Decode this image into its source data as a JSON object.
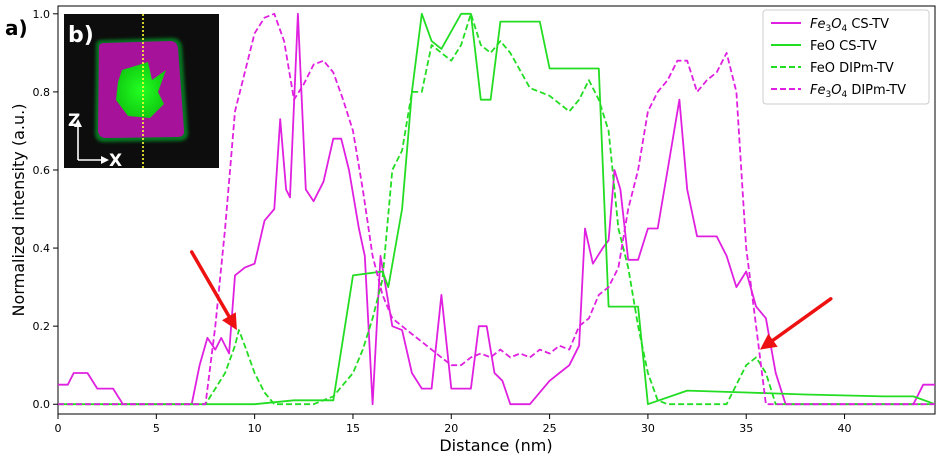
{
  "chart_data": {
    "type": "line",
    "title": "",
    "xlabel": "Distance (nm)",
    "ylabel": "Normalized intensity (a.u.)",
    "xlim": [
      0,
      44.6
    ],
    "ylim": [
      -0.025,
      1.02
    ],
    "xticks": [
      0,
      5,
      10,
      15,
      20,
      25,
      30,
      35,
      40
    ],
    "yticks": [
      0.0,
      0.2,
      0.4,
      0.6,
      0.8,
      1.0
    ],
    "xtick_labels": [
      "0",
      "5",
      "10",
      "15",
      "20",
      "25",
      "30",
      "35",
      "40"
    ],
    "ytick_labels": [
      "0.0",
      "0.2",
      "0.4",
      "0.6",
      "0.8",
      "1.0"
    ],
    "grid": false,
    "legend_position": "top-right",
    "series": [
      {
        "name_main": "Fe",
        "name_sub1": "3",
        "name_mid": "O",
        "name_sub2": "4",
        "name_tail": " CS-TV",
        "color": "#e020e0",
        "style": "solid",
        "x": [
          0,
          0.5,
          0.8,
          1.5,
          2.0,
          2.8,
          3.3,
          6.8,
          7.2,
          7.6,
          8.0,
          8.3,
          8.7,
          9.0,
          9.5,
          10.0,
          10.5,
          11.0,
          11.3,
          11.6,
          11.8,
          12.2,
          12.6,
          13.0,
          13.5,
          14.0,
          14.4,
          14.8,
          15.3,
          15.6,
          16.0,
          16.4,
          17.0,
          17.5,
          18.0,
          18.5,
          19.0,
          19.5,
          20.0,
          20.5,
          21.0,
          21.4,
          21.8,
          22.2,
          22.6,
          23.0,
          24.0,
          25.0,
          25.5,
          26.0,
          26.5,
          26.8,
          27.2,
          27.7,
          28.0,
          28.3,
          28.6,
          29.0,
          29.5,
          30.0,
          30.5,
          31.0,
          31.6,
          32.0,
          32.5,
          33.0,
          33.5,
          34.0,
          34.5,
          35.0,
          35.5,
          36.0,
          36.5,
          37.0,
          42.0,
          43.5,
          44.0,
          44.6
        ],
        "y": [
          0.05,
          0.05,
          0.08,
          0.08,
          0.04,
          0.04,
          0.0,
          0.0,
          0.1,
          0.17,
          0.14,
          0.17,
          0.13,
          0.33,
          0.35,
          0.36,
          0.47,
          0.5,
          0.73,
          0.55,
          0.53,
          1.0,
          0.55,
          0.52,
          0.57,
          0.68,
          0.68,
          0.6,
          0.45,
          0.38,
          0.0,
          0.38,
          0.2,
          0.19,
          0.08,
          0.04,
          0.04,
          0.28,
          0.04,
          0.04,
          0.04,
          0.2,
          0.2,
          0.08,
          0.06,
          0.0,
          0.0,
          0.06,
          0.08,
          0.1,
          0.15,
          0.45,
          0.36,
          0.4,
          0.42,
          0.6,
          0.55,
          0.37,
          0.37,
          0.45,
          0.45,
          0.6,
          0.78,
          0.55,
          0.43,
          0.43,
          0.43,
          0.38,
          0.3,
          0.34,
          0.25,
          0.22,
          0.08,
          0.0,
          0.0,
          0.0,
          0.05,
          0.05
        ]
      },
      {
        "name": "FeO CS-TV",
        "color": "#22dd22",
        "style": "solid",
        "x": [
          0,
          7.5,
          8.5,
          9.2,
          10.0,
          12.0,
          14.0,
          15.0,
          16.5,
          16.8,
          17.5,
          18.0,
          18.5,
          19.0,
          19.5,
          20.5,
          21.0,
          21.5,
          22.0,
          22.5,
          23.0,
          24.5,
          25.0,
          27.5,
          28.0,
          29.5,
          30.0,
          32.0,
          35.0,
          38.0,
          42.0,
          43.5,
          44.6
        ],
        "y": [
          0.0,
          0.0,
          0.0,
          0.0,
          0.0,
          0.01,
          0.01,
          0.33,
          0.34,
          0.3,
          0.5,
          0.8,
          1.0,
          0.93,
          0.91,
          1.0,
          1.0,
          0.78,
          0.78,
          0.98,
          0.98,
          0.98,
          0.86,
          0.86,
          0.25,
          0.25,
          0.0,
          0.035,
          0.03,
          0.025,
          0.02,
          0.02,
          0.0
        ]
      },
      {
        "name": "FeO DIPm-TV",
        "color": "#22dd22",
        "style": "dashed",
        "x": [
          0,
          7.5,
          8.0,
          8.5,
          9.0,
          9.2,
          9.5,
          10.0,
          10.5,
          11.0,
          12.0,
          13.0,
          14.0,
          15.0,
          15.5,
          16.0,
          16.5,
          17.0,
          17.5,
          18.0,
          18.5,
          19.0,
          19.5,
          20.0,
          20.5,
          21.0,
          21.5,
          22.0,
          22.5,
          23.0,
          24.0,
          25.0,
          25.5,
          26.0,
          26.5,
          27.0,
          27.5,
          28.0,
          28.5,
          29.0,
          29.5,
          30.0,
          30.5,
          31.0,
          33.0,
          34.0,
          34.5,
          35.0,
          35.5,
          36.0,
          36.5,
          37.0,
          44.6
        ],
        "y": [
          0.0,
          0.0,
          0.04,
          0.08,
          0.15,
          0.19,
          0.15,
          0.08,
          0.03,
          0.0,
          0.0,
          0.0,
          0.02,
          0.08,
          0.14,
          0.22,
          0.32,
          0.6,
          0.65,
          0.8,
          0.8,
          0.92,
          0.9,
          0.88,
          0.92,
          1.0,
          0.92,
          0.9,
          0.93,
          0.9,
          0.81,
          0.79,
          0.77,
          0.75,
          0.78,
          0.83,
          0.78,
          0.7,
          0.45,
          0.35,
          0.2,
          0.08,
          0.01,
          0.0,
          0.0,
          0.0,
          0.05,
          0.1,
          0.12,
          0.08,
          0.0,
          0.0,
          0.0
        ]
      },
      {
        "name_main": "Fe",
        "name_sub1": "3",
        "name_mid": "O",
        "name_sub2": "4",
        "name_tail": " DIPm-TV",
        "color": "#e020e0",
        "style": "dashed",
        "x": [
          0,
          7.5,
          8.0,
          8.5,
          9.0,
          9.5,
          10.0,
          10.5,
          11.0,
          11.5,
          12.0,
          12.5,
          13.0,
          13.5,
          14.0,
          14.5,
          15.0,
          15.5,
          16.0,
          16.5,
          17.0,
          17.5,
          18.0,
          18.5,
          19.0,
          19.5,
          20.0,
          20.5,
          21.0,
          21.5,
          22.0,
          22.5,
          23.0,
          23.5,
          24.0,
          24.5,
          25.0,
          25.5,
          26.0,
          26.5,
          27.0,
          27.5,
          28.0,
          28.5,
          29.0,
          29.5,
          30.0,
          30.5,
          31.0,
          31.5,
          32.0,
          32.5,
          33.0,
          33.5,
          34.0,
          34.5,
          35.0,
          35.5,
          36.0,
          37.0,
          44.6
        ],
        "y": [
          0.0,
          0.0,
          0.2,
          0.45,
          0.75,
          0.85,
          0.95,
          0.99,
          1.0,
          0.93,
          0.78,
          0.82,
          0.87,
          0.88,
          0.85,
          0.78,
          0.7,
          0.55,
          0.38,
          0.28,
          0.22,
          0.2,
          0.18,
          0.16,
          0.14,
          0.12,
          0.1,
          0.1,
          0.12,
          0.13,
          0.12,
          0.14,
          0.12,
          0.13,
          0.12,
          0.14,
          0.13,
          0.15,
          0.14,
          0.2,
          0.22,
          0.28,
          0.3,
          0.35,
          0.5,
          0.6,
          0.75,
          0.8,
          0.83,
          0.88,
          0.88,
          0.8,
          0.83,
          0.85,
          0.9,
          0.8,
          0.4,
          0.2,
          0.0,
          0.0,
          0.0
        ]
      }
    ],
    "annotations": {
      "panel_a": "a)",
      "panel_b": "b)",
      "inset_z": "Z",
      "inset_x": "X",
      "arrows": [
        {
          "from_x": 6.8,
          "from_y": 0.39,
          "to_x": 9.1,
          "to_y": 0.19,
          "color": "#ee1111"
        },
        {
          "from_x": 39.3,
          "from_y": 0.27,
          "to_x": 35.7,
          "to_y": 0.14,
          "color": "#ee1111"
        }
      ]
    }
  }
}
